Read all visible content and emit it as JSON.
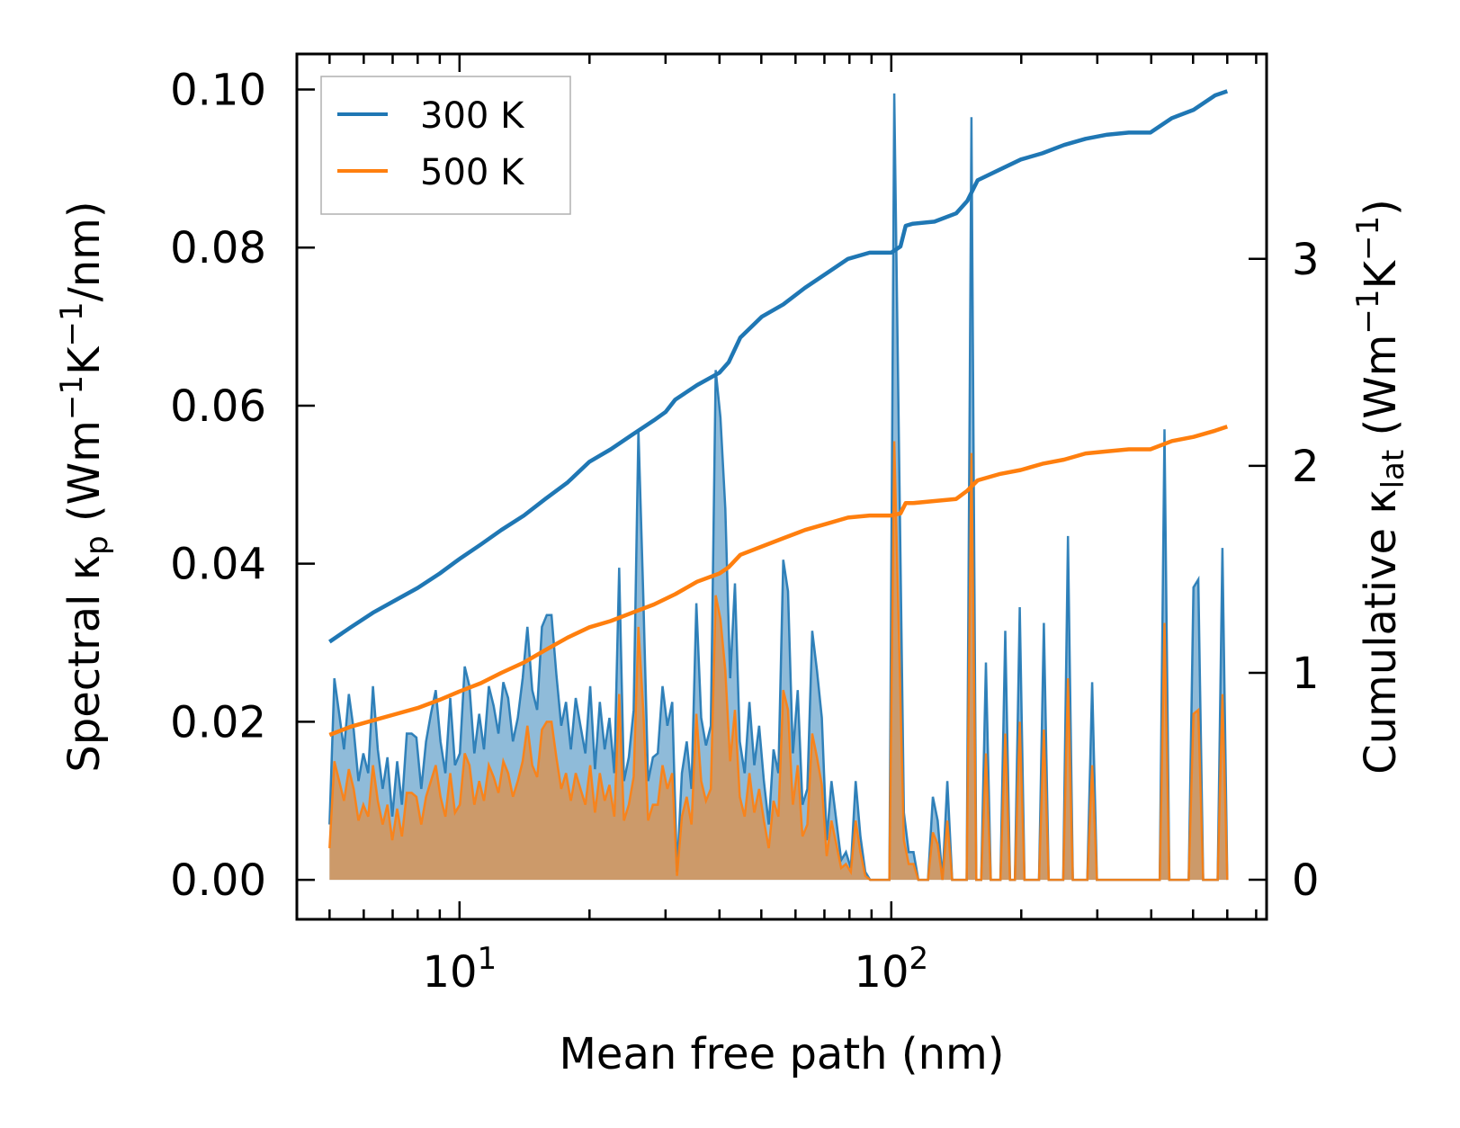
{
  "chart_data": {
    "type": "line",
    "xscale": "log",
    "xlabel": "Mean free path (nm)",
    "xlim": [
      4.2,
      740
    ],
    "x_ticks": [
      {
        "value": 10,
        "base": "10",
        "exp": "1"
      },
      {
        "value": 100,
        "base": "10",
        "exp": "2"
      }
    ],
    "ylabel_left": {
      "prefix": "Spectral κ",
      "sub": "p",
      "suffix": " (Wm",
      "sup1": "−1",
      "mid": "K",
      "sup2": "−1",
      "end": "/nm)"
    },
    "ylim_left": [
      -0.005,
      0.1045
    ],
    "yticks_left": [
      0.0,
      0.02,
      0.04,
      0.06,
      0.08,
      0.1
    ],
    "ytick_labels_left": [
      "0.00",
      "0.02",
      "0.04",
      "0.06",
      "0.08",
      "0.10"
    ],
    "ylabel_right": {
      "prefix": "Cumulative κ",
      "sub": "lat",
      "suffix": " (Wm",
      "sup1": "−1",
      "mid": "K",
      "sup2": "−1",
      "end": ")"
    },
    "ylim_right": [
      -0.191,
      3.99
    ],
    "yticks_right": [
      0,
      1,
      2,
      3
    ],
    "ytick_labels_right": [
      "0",
      "1",
      "2",
      "3"
    ],
    "legend": {
      "location": "upper-left",
      "entries": [
        "300 K",
        "500 K"
      ]
    },
    "colors": {
      "300K": "#1f77b4",
      "500K": "#ff7f0e",
      "fill_300K": "#1f77b4",
      "fill_500K": "#ff7f0e"
    },
    "spectral_x_range": [
      5.0,
      600
    ],
    "series": [
      {
        "name": "300 K spectral",
        "axis": "left",
        "kind": "filled",
        "values": [
          0.007,
          0.0255,
          0.021,
          0.0165,
          0.0235,
          0.019,
          0.0125,
          0.016,
          0.0135,
          0.0245,
          0.0165,
          0.0115,
          0.0155,
          0.008,
          0.015,
          0.0095,
          0.0185,
          0.0185,
          0.018,
          0.0115,
          0.0175,
          0.021,
          0.024,
          0.0175,
          0.0135,
          0.023,
          0.0145,
          0.016,
          0.027,
          0.0245,
          0.016,
          0.021,
          0.0165,
          0.0245,
          0.022,
          0.0185,
          0.025,
          0.023,
          0.0175,
          0.0205,
          0.0255,
          0.032,
          0.024,
          0.0215,
          0.032,
          0.0335,
          0.0335,
          0.026,
          0.0195,
          0.0225,
          0.0165,
          0.023,
          0.0195,
          0.016,
          0.0245,
          0.014,
          0.0225,
          0.0165,
          0.0205,
          0.0135,
          0.0395,
          0.0125,
          0.0155,
          0.0215,
          0.057,
          0.036,
          0.0125,
          0.0155,
          0.016,
          0.0245,
          0.0195,
          0.0225,
          0.001,
          0.0135,
          0.0175,
          0.0115,
          0.035,
          0.0205,
          0.017,
          0.0195,
          0.0645,
          0.0585,
          0.047,
          0.0255,
          0.0375,
          0.0175,
          0.0135,
          0.0225,
          0.0145,
          0.0195,
          0.0125,
          0.007,
          0.0165,
          0.0135,
          0.0405,
          0.0365,
          0.016,
          0.024,
          0.0095,
          0.0115,
          0.0315,
          0.0265,
          0.0205,
          0.005,
          0.0125,
          0.0075,
          0.0025,
          0.0035,
          0.0015,
          0.0125,
          0.0055,
          0.001,
          0.0,
          0.0,
          0.0,
          0.0,
          0.0,
          0.0995,
          0.0545,
          0.0085,
          0.0035,
          0.0035,
          0.0,
          0.0,
          0.0,
          0.0105,
          0.0075,
          0.0,
          0.0125,
          0.0,
          0.0,
          0.0,
          0.0,
          0.0965,
          0.0,
          0.0,
          0.0275,
          0.0,
          0.0,
          0.0,
          0.0315,
          0.0,
          0.0,
          0.0345,
          0.0,
          0.0,
          0.0,
          0.0,
          0.0325,
          0.0,
          0.0,
          0.0,
          0.0,
          0.0435,
          0.0,
          0.0,
          0.0,
          0.0,
          0.025,
          0.0,
          0.0,
          0.0,
          0.0,
          0.0,
          0.0,
          0.0,
          0.0,
          0.0,
          0.0,
          0.0,
          0.0,
          0.0,
          0.0,
          0.057,
          0.0,
          0.0,
          0.0,
          0.0,
          0.0,
          0.037,
          0.038,
          0.0,
          0.0,
          0.0,
          0.0,
          0.042,
          0.0
        ]
      },
      {
        "name": "500 K spectral",
        "axis": "left",
        "kind": "filled",
        "values": [
          0.004,
          0.015,
          0.0125,
          0.01,
          0.014,
          0.0115,
          0.0075,
          0.0095,
          0.008,
          0.0145,
          0.01,
          0.007,
          0.0095,
          0.005,
          0.009,
          0.0055,
          0.011,
          0.011,
          0.0105,
          0.007,
          0.0105,
          0.0125,
          0.0145,
          0.0105,
          0.008,
          0.0135,
          0.0085,
          0.0095,
          0.016,
          0.0145,
          0.0095,
          0.0125,
          0.01,
          0.0145,
          0.013,
          0.011,
          0.015,
          0.0135,
          0.0105,
          0.0125,
          0.015,
          0.0195,
          0.0145,
          0.013,
          0.019,
          0.02,
          0.02,
          0.0155,
          0.0115,
          0.0135,
          0.01,
          0.0135,
          0.0115,
          0.0095,
          0.0145,
          0.0085,
          0.0135,
          0.01,
          0.012,
          0.008,
          0.0235,
          0.0075,
          0.0095,
          0.013,
          0.032,
          0.0215,
          0.0075,
          0.0095,
          0.0095,
          0.0145,
          0.0115,
          0.0135,
          0.0005,
          0.008,
          0.0105,
          0.007,
          0.021,
          0.0125,
          0.01,
          0.0115,
          0.036,
          0.033,
          0.0265,
          0.015,
          0.0215,
          0.0105,
          0.008,
          0.0135,
          0.0085,
          0.0115,
          0.0075,
          0.004,
          0.01,
          0.008,
          0.024,
          0.0215,
          0.0095,
          0.0145,
          0.0055,
          0.007,
          0.0185,
          0.0155,
          0.012,
          0.003,
          0.0075,
          0.0045,
          0.0015,
          0.002,
          0.001,
          0.0075,
          0.0035,
          0.0005,
          0.0,
          0.0,
          0.0,
          0.0,
          0.0,
          0.0555,
          0.0305,
          0.005,
          0.002,
          0.002,
          0.0,
          0.0,
          0.0,
          0.006,
          0.0045,
          0.0,
          0.0075,
          0.0,
          0.0,
          0.0,
          0.0,
          0.054,
          0.0,
          0.0,
          0.016,
          0.0,
          0.0,
          0.0,
          0.0185,
          0.0,
          0.0,
          0.02,
          0.0,
          0.0,
          0.0,
          0.0,
          0.019,
          0.0,
          0.0,
          0.0,
          0.0,
          0.0255,
          0.0,
          0.0,
          0.0,
          0.0,
          0.0145,
          0.0,
          0.0,
          0.0,
          0.0,
          0.0,
          0.0,
          0.0,
          0.0,
          0.0,
          0.0,
          0.0,
          0.0,
          0.0,
          0.0,
          0.0325,
          0.0,
          0.0,
          0.0,
          0.0,
          0.0,
          0.021,
          0.0215,
          0.0,
          0.0,
          0.0,
          0.0,
          0.0235,
          0.0
        ]
      },
      {
        "name": "300 K",
        "axis": "right",
        "kind": "line",
        "x": [
          5.0,
          5.6,
          6.3,
          7.1,
          8.0,
          9.0,
          10.0,
          11.2,
          12.5,
          14.1,
          15.8,
          17.8,
          20.0,
          22.4,
          25.1,
          28.2,
          30.0,
          31.6,
          35.5,
          40.0,
          42.0,
          44.7,
          50.1,
          56.2,
          63.1,
          70.8,
          79.4,
          89.1,
          100.0,
          105.0,
          108.0,
          112.2,
          125.9,
          141.3,
          150.0,
          158.5,
          177.8,
          199.5,
          223.9,
          251.2,
          281.8,
          316.2,
          354.8,
          398.1,
          446.7,
          501.2,
          562.3,
          600.0
        ],
        "values": [
          1.15,
          1.22,
          1.29,
          1.35,
          1.41,
          1.48,
          1.55,
          1.62,
          1.69,
          1.76,
          1.84,
          1.92,
          2.02,
          2.08,
          2.15,
          2.22,
          2.26,
          2.32,
          2.39,
          2.45,
          2.5,
          2.62,
          2.72,
          2.78,
          2.86,
          2.93,
          3.0,
          3.03,
          3.03,
          3.06,
          3.16,
          3.17,
          3.18,
          3.22,
          3.28,
          3.38,
          3.43,
          3.48,
          3.51,
          3.55,
          3.58,
          3.6,
          3.61,
          3.61,
          3.68,
          3.72,
          3.79,
          3.81
        ]
      },
      {
        "name": "500 K",
        "axis": "right",
        "kind": "line",
        "x": [
          5.0,
          5.6,
          6.3,
          7.1,
          8.0,
          9.0,
          10.0,
          11.2,
          12.5,
          14.1,
          15.8,
          17.8,
          20.0,
          22.4,
          25.1,
          28.2,
          31.6,
          35.5,
          40.0,
          42.0,
          44.7,
          50.1,
          56.2,
          63.1,
          70.8,
          79.4,
          89.1,
          100.0,
          105.0,
          108.0,
          112.2,
          125.9,
          141.3,
          150.0,
          158.5,
          177.8,
          199.5,
          223.9,
          251.2,
          281.8,
          316.2,
          354.8,
          398.1,
          446.7,
          501.2,
          562.3,
          600.0
        ],
        "values": [
          0.7,
          0.74,
          0.77,
          0.8,
          0.83,
          0.87,
          0.91,
          0.95,
          1.0,
          1.05,
          1.11,
          1.17,
          1.22,
          1.25,
          1.29,
          1.33,
          1.38,
          1.44,
          1.48,
          1.51,
          1.57,
          1.61,
          1.65,
          1.69,
          1.72,
          1.75,
          1.76,
          1.76,
          1.77,
          1.82,
          1.82,
          1.83,
          1.84,
          1.88,
          1.93,
          1.96,
          1.98,
          2.01,
          2.03,
          2.06,
          2.07,
          2.08,
          2.08,
          2.12,
          2.14,
          2.17,
          2.19
        ]
      }
    ]
  }
}
